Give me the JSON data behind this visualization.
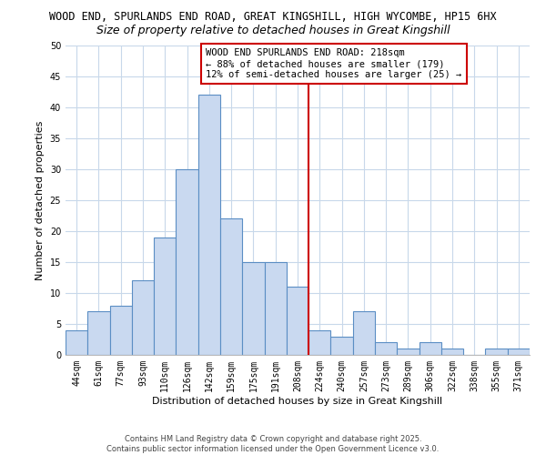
{
  "title1": "WOOD END, SPURLANDS END ROAD, GREAT KINGSHILL, HIGH WYCOMBE, HP15 6HX",
  "title2": "Size of property relative to detached houses in Great Kingshill",
  "xlabel": "Distribution of detached houses by size in Great Kingshill",
  "ylabel": "Number of detached properties",
  "bin_labels": [
    "44sqm",
    "61sqm",
    "77sqm",
    "93sqm",
    "110sqm",
    "126sqm",
    "142sqm",
    "159sqm",
    "175sqm",
    "191sqm",
    "208sqm",
    "224sqm",
    "240sqm",
    "257sqm",
    "273sqm",
    "289sqm",
    "306sqm",
    "322sqm",
    "338sqm",
    "355sqm",
    "371sqm"
  ],
  "bar_heights": [
    4,
    7,
    8,
    12,
    19,
    30,
    42,
    22,
    15,
    15,
    11,
    4,
    3,
    7,
    2,
    1,
    2,
    1,
    0,
    1,
    1
  ],
  "bar_color": "#c9d9f0",
  "bar_edge_color": "#5b8ec4",
  "vline_x": 10.5,
  "vline_color": "#cc0000",
  "annotation_text": "WOOD END SPURLANDS END ROAD: 218sqm\n← 88% of detached houses are smaller (179)\n12% of semi-detached houses are larger (25) →",
  "annotation_box_color": "#ffffff",
  "annotation_box_edge_color": "#cc0000",
  "ylim": [
    0,
    50
  ],
  "yticks": [
    0,
    5,
    10,
    15,
    20,
    25,
    30,
    35,
    40,
    45,
    50
  ],
  "footer1": "Contains HM Land Registry data © Crown copyright and database right 2025.",
  "footer2": "Contains public sector information licensed under the Open Government Licence v3.0.",
  "bg_color": "#ffffff",
  "grid_color": "#c8d8ea",
  "title1_fontsize": 8.5,
  "title2_fontsize": 9,
  "axis_label_fontsize": 8,
  "tick_fontsize": 7,
  "footer_fontsize": 6,
  "annotation_fontsize": 7.5
}
